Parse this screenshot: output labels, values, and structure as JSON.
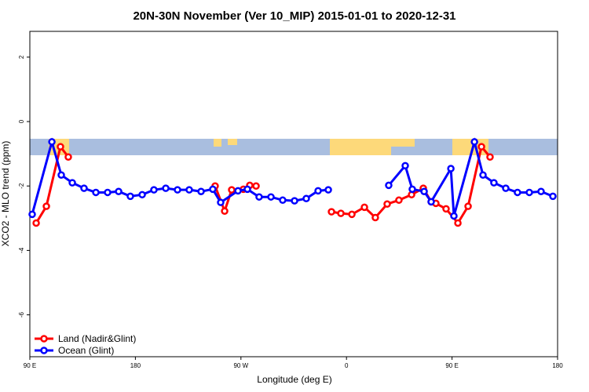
{
  "chart_data": {
    "type": "line",
    "title": "20N-30N November (Ver 10_MIP)   2015-01-01 to 2020-12-31",
    "x_label": "Longitude (deg E)",
    "y_label": "XCO2 - MLO trend (ppm)",
    "xlim": [
      90,
      540
    ],
    "ylim": [
      -7.3,
      2.8
    ],
    "xticks": [
      {
        "value": 90,
        "label": "90 E"
      },
      180,
      {
        "value": 270,
        "label": "90 W"
      },
      {
        "value": 360,
        "label": "0"
      },
      {
        "value": 450,
        "label": "90 E"
      },
      {
        "value": 540,
        "label": "180"
      }
    ],
    "yticks": [
      -6,
      -4,
      -2,
      0,
      2
    ],
    "legend": "bottom-left",
    "series": [
      {
        "name": "Land (Nadir&Glint)",
        "color": "#ff0000",
        "x": [
          95.4,
          104.1,
          116.1,
          122.8,
          null,
          248,
          256.1,
          262.1,
          272.1,
          277.5,
          282.9,
          null,
          347.2,
          355.2,
          364.6,
          375.3,
          384.6,
          394.7,
          404.7,
          415.5,
          425.5,
          432.2,
          436.2,
          444.9,
          455,
          463.7,
          475.1,
          482.4
        ],
        "values": [
          -3.15,
          -2.63,
          -0.78,
          -1.1,
          null,
          -2.0,
          -2.78,
          -2.12,
          -2.1,
          -1.98,
          -2.0,
          null,
          -2.8,
          -2.85,
          -2.88,
          -2.66,
          -2.98,
          -2.56,
          -2.44,
          -2.27,
          -2.07,
          -2.49,
          -2.54,
          -2.71,
          -3.15,
          -2.63,
          -0.78,
          -1.1
        ]
      },
      {
        "name": "Ocean (Glint)",
        "color": "#0000ff",
        "x": [
          92,
          108.8,
          116.8,
          126.2,
          136.2,
          146.3,
          156.3,
          165.7,
          175.7,
          185.8,
          195.8,
          205.9,
          215.9,
          225.9,
          236,
          246,
          252.7,
          267.5,
          275.5,
          285.5,
          295.6,
          305.6,
          315.7,
          325.7,
          335.8,
          344.5,
          null,
          396,
          410.1,
          416.1,
          426.2,
          432.2,
          449,
          451.6,
          469.1,
          476.4,
          485.7,
          495.8,
          505.8,
          515.9,
          525.9,
          536
        ],
        "values": [
          -2.88,
          -0.63,
          -1.66,
          -1.9,
          -2.07,
          -2.2,
          -2.2,
          -2.17,
          -2.32,
          -2.27,
          -2.12,
          -2.07,
          -2.12,
          -2.12,
          -2.17,
          -2.1,
          -2.51,
          -2.15,
          -2.1,
          -2.34,
          -2.34,
          -2.44,
          -2.46,
          -2.39,
          -2.15,
          -2.12,
          null,
          -1.98,
          -1.37,
          -2.1,
          -2.17,
          -2.49,
          -1.46,
          -2.93,
          -0.63,
          -1.66,
          -1.9,
          -2.07,
          -2.2,
          -2.2,
          -2.17,
          -2.32
        ]
      }
    ]
  }
}
